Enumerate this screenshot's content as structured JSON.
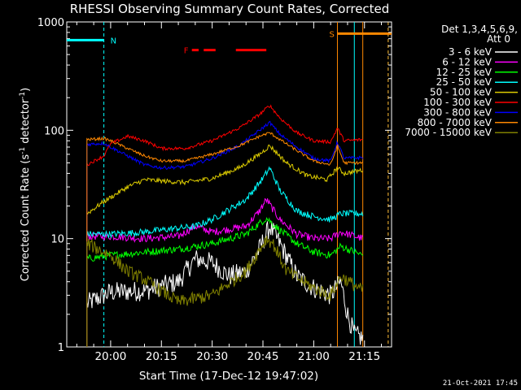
{
  "chart_data": {
    "type": "line",
    "title": "RHESSI Observing Summary Count Rates, Corrected",
    "xlabel": "Start Time (17-Dec-12 19:47:02)",
    "ylabel": "Corrected Count Rate (s⁻¹ detector⁻¹)",
    "ylabel_parts": {
      "main": "Corrected Count Rate (s",
      "sup1": "-1",
      "mid": " detector",
      "sup2": "-1",
      "end": ")"
    },
    "yscale": "log",
    "xlim": [
      "19:47:02",
      "21:23:00"
    ],
    "ylim": [
      1,
      1000
    ],
    "x_ticks": [
      "20:00",
      "20:15",
      "20:30",
      "20:45",
      "21:00",
      "21:15"
    ],
    "y_ticks": [
      "1",
      "10",
      "100",
      "1000"
    ],
    "legend_header": [
      "Det 1,3,4,5,6,9,",
      "Att 0"
    ],
    "legend_position": "top-right",
    "footer_date": "21-Oct-2021 17:45",
    "flags": [
      {
        "label": "N",
        "color": "#00ffff",
        "start": "19:47:02",
        "end": "19:58:00",
        "bar_y": 680
      },
      {
        "label": "S",
        "color": "#ff8800",
        "start": "21:07:00",
        "end": "21:23:00",
        "bar_y": 780
      },
      {
        "label": "F",
        "color": "#ff0000",
        "segments": [
          [
            "20:24:00",
            "20:26:00"
          ],
          [
            "20:27:30",
            "20:31:00"
          ],
          [
            "20:37:00",
            "20:46:00"
          ]
        ],
        "bar_y": 550
      }
    ],
    "vlines": [
      {
        "time": "19:58:00",
        "color": "#00ffff",
        "style": "dashed"
      },
      {
        "time": "21:07:00",
        "color": "#ff8800",
        "style": "solid"
      },
      {
        "time": "21:12:00",
        "color": "#00ffff",
        "style": "solid"
      },
      {
        "time": "21:14:30",
        "color": "#ff8800",
        "style": "solid"
      },
      {
        "time": "21:22:00",
        "color": "#00ffff",
        "style": "dashed"
      },
      {
        "time": "21:22:00",
        "color": "#ff8800",
        "style": "dashed"
      }
    ],
    "data_start": "19:53:00",
    "data_end": "21:14:30",
    "series": [
      {
        "name": "3 - 6 keV",
        "color": "#ffffff",
        "noise": 0.22,
        "points": [
          [
            "19:53:00",
            2.5
          ],
          [
            "19:58:00",
            3.0
          ],
          [
            "20:00:00",
            3.2
          ],
          [
            "20:10:00",
            3.3
          ],
          [
            "20:20:00",
            4.0
          ],
          [
            "20:25:00",
            6.5
          ],
          [
            "20:30:00",
            6.0
          ],
          [
            "20:35:00",
            4.5
          ],
          [
            "20:40:00",
            5.0
          ],
          [
            "20:44:00",
            8.0
          ],
          [
            "20:47:00",
            13
          ],
          [
            "20:50:00",
            9
          ],
          [
            "20:55:00",
            4.5
          ],
          [
            "21:00:00",
            3.5
          ],
          [
            "21:05:00",
            3.0
          ],
          [
            "21:08:00",
            4.0
          ],
          [
            "21:10:00",
            2.0
          ],
          [
            "21:12:00",
            1.3
          ],
          [
            "21:14:30",
            1.2
          ]
        ]
      },
      {
        "name": "6 - 12 keV",
        "color": "#ff00ff",
        "noise": 0.08,
        "points": [
          [
            "19:53:00",
            10.5
          ],
          [
            "20:00:00",
            10.5
          ],
          [
            "20:10:00",
            10
          ],
          [
            "20:20:00",
            10.5
          ],
          [
            "20:25:00",
            13
          ],
          [
            "20:30:00",
            11.5
          ],
          [
            "20:40:00",
            13
          ],
          [
            "20:44:00",
            18
          ],
          [
            "20:46:00",
            23
          ],
          [
            "20:50:00",
            15
          ],
          [
            "20:55:00",
            11
          ],
          [
            "21:00:00",
            10
          ],
          [
            "21:05:00",
            10
          ],
          [
            "21:08:00",
            11.5
          ],
          [
            "21:14:30",
            10
          ]
        ]
      },
      {
        "name": "12 - 25 keV",
        "color": "#00ff00",
        "noise": 0.08,
        "points": [
          [
            "19:53:00",
            6.5
          ],
          [
            "20:00:00",
            7.0
          ],
          [
            "20:10:00",
            7.5
          ],
          [
            "20:20:00",
            8.0
          ],
          [
            "20:30:00",
            9.0
          ],
          [
            "20:40:00",
            11
          ],
          [
            "20:46:00",
            15.5
          ],
          [
            "20:50:00",
            12
          ],
          [
            "20:55:00",
            9.0
          ],
          [
            "21:00:00",
            7.5
          ],
          [
            "21:05:00",
            7.0
          ],
          [
            "21:08:00",
            8.5
          ],
          [
            "21:14:30",
            7.0
          ]
        ]
      },
      {
        "name": "25 - 50 keV",
        "color": "#00ffff",
        "noise": 0.07,
        "points": [
          [
            "19:53:00",
            11
          ],
          [
            "20:00:00",
            11
          ],
          [
            "20:10:00",
            11.5
          ],
          [
            "20:15:00",
            12
          ],
          [
            "20:25:00",
            13
          ],
          [
            "20:30:00",
            15
          ],
          [
            "20:40:00",
            23
          ],
          [
            "20:45:00",
            36
          ],
          [
            "20:47:00",
            45
          ],
          [
            "20:50:00",
            28
          ],
          [
            "20:55:00",
            18
          ],
          [
            "21:00:00",
            16
          ],
          [
            "21:05:00",
            15
          ],
          [
            "21:08:00",
            17
          ],
          [
            "21:14:30",
            17
          ]
        ]
      },
      {
        "name": "50 - 100 keV",
        "color": "#ddcc00",
        "noise": 0.05,
        "points": [
          [
            "19:53:00",
            17
          ],
          [
            "19:58:00",
            22
          ],
          [
            "20:05:00",
            30
          ],
          [
            "20:10:00",
            35
          ],
          [
            "20:15:00",
            34
          ],
          [
            "20:22:00",
            33
          ],
          [
            "20:30:00",
            36
          ],
          [
            "20:38:00",
            45
          ],
          [
            "20:44:00",
            60
          ],
          [
            "20:47:00",
            72
          ],
          [
            "20:52:00",
            50
          ],
          [
            "20:58:00",
            38
          ],
          [
            "21:04:00",
            35
          ],
          [
            "21:07:00",
            45
          ],
          [
            "21:09:00",
            40
          ],
          [
            "21:14:30",
            43
          ]
        ]
      },
      {
        "name": "100 - 300 keV",
        "color": "#ff0000",
        "noise": 0.035,
        "points": [
          [
            "19:53:00",
            48
          ],
          [
            "19:58:00",
            58
          ],
          [
            "20:00:00",
            75
          ],
          [
            "20:05:00",
            88
          ],
          [
            "20:10:00",
            80
          ],
          [
            "20:15:00",
            68
          ],
          [
            "20:22:00",
            68
          ],
          [
            "20:30:00",
            80
          ],
          [
            "20:38:00",
            105
          ],
          [
            "20:44:00",
            140
          ],
          [
            "20:47:00",
            170
          ],
          [
            "20:50:00",
            130
          ],
          [
            "20:55:00",
            95
          ],
          [
            "21:00:00",
            80
          ],
          [
            "21:05:00",
            78
          ],
          [
            "21:07:00",
            105
          ],
          [
            "21:09:00",
            80
          ],
          [
            "21:14:30",
            82
          ]
        ]
      },
      {
        "name": "300 - 800 keV",
        "color": "#0000ff",
        "noise": 0.035,
        "points": [
          [
            "19:53:00",
            74
          ],
          [
            "19:58:00",
            76
          ],
          [
            "20:00:00",
            70
          ],
          [
            "20:05:00",
            58
          ],
          [
            "20:10:00",
            48
          ],
          [
            "20:15:00",
            45
          ],
          [
            "20:22:00",
            46
          ],
          [
            "20:30:00",
            55
          ],
          [
            "20:38:00",
            72
          ],
          [
            "20:44:00",
            100
          ],
          [
            "20:47:00",
            118
          ],
          [
            "20:50:00",
            92
          ],
          [
            "20:55:00",
            70
          ],
          [
            "21:00:00",
            55
          ],
          [
            "21:05:00",
            52
          ],
          [
            "21:07:00",
            78
          ],
          [
            "21:09:00",
            55
          ],
          [
            "21:14:30",
            56
          ]
        ]
      },
      {
        "name": "800 - 7000 keV",
        "color": "#ff8800",
        "noise": 0.03,
        "points": [
          [
            "19:53:00",
            82
          ],
          [
            "19:58:00",
            84
          ],
          [
            "20:00:00",
            80
          ],
          [
            "20:05:00",
            68
          ],
          [
            "20:10:00",
            58
          ],
          [
            "20:15:00",
            52
          ],
          [
            "20:22:00",
            52
          ],
          [
            "20:30:00",
            60
          ],
          [
            "20:38:00",
            72
          ],
          [
            "20:44:00",
            88
          ],
          [
            "20:47:00",
            95
          ],
          [
            "20:50:00",
            82
          ],
          [
            "20:55:00",
            65
          ],
          [
            "21:00:00",
            52
          ],
          [
            "21:05:00",
            48
          ],
          [
            "21:07:00",
            72
          ],
          [
            "21:09:00",
            50
          ],
          [
            "21:14:30",
            50
          ]
        ]
      },
      {
        "name": "7000 - 15000 keV",
        "color": "#808000",
        "noise": 0.14,
        "points": [
          [
            "19:53:00",
            9
          ],
          [
            "20:00:00",
            7
          ],
          [
            "20:05:00",
            5
          ],
          [
            "20:10:00",
            4.2
          ],
          [
            "20:15:00",
            3.3
          ],
          [
            "20:20:00",
            2.6
          ],
          [
            "20:30:00",
            3.0
          ],
          [
            "20:40:00",
            5.0
          ],
          [
            "20:46:00",
            10
          ],
          [
            "20:48:00",
            9
          ],
          [
            "20:52:00",
            5
          ],
          [
            "21:00:00",
            3.5
          ],
          [
            "21:05:00",
            3.0
          ],
          [
            "21:08:00",
            4.5
          ],
          [
            "21:14:30",
            3.3
          ]
        ]
      }
    ]
  }
}
